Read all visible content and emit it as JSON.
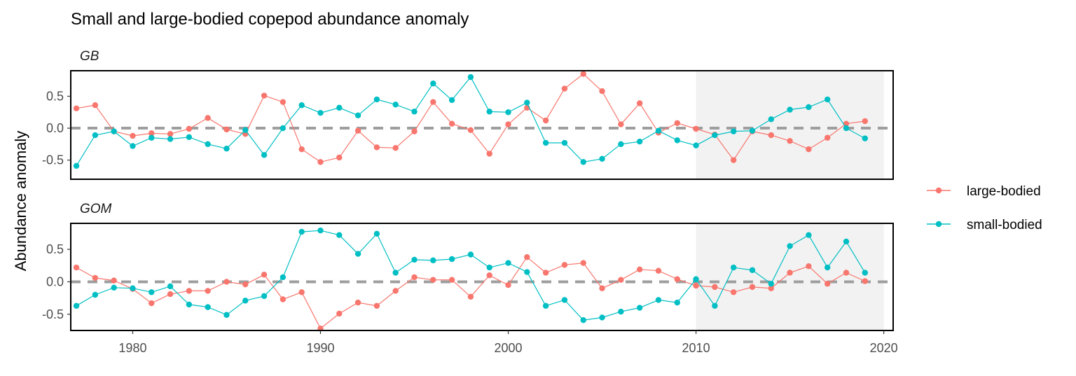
{
  "chart_data": {
    "type": "line",
    "title": "Small and large-bodied copepod abundance anomaly",
    "xlabel": "",
    "ylabel": "Abundance anomaly",
    "xlim": [
      1976.7,
      2020.5
    ],
    "x_ticks": [
      1980,
      1990,
      2000,
      2010,
      2020
    ],
    "y_ticks": [
      -0.5,
      0.0,
      0.5
    ],
    "y_tick_labels": [
      "-0.5",
      "0.0",
      "0.5"
    ],
    "highlight_region": [
      2010,
      2020
    ],
    "reference_line": 0,
    "legend_position": "right",
    "series_colors": {
      "large-bodied": "#F8766D",
      "small-bodied": "#00BFC4"
    },
    "x": [
      1977,
      1978,
      1979,
      1980,
      1981,
      1982,
      1983,
      1984,
      1985,
      1986,
      1987,
      1988,
      1989,
      1990,
      1991,
      1992,
      1993,
      1994,
      1995,
      1996,
      1997,
      1998,
      1999,
      2000,
      2001,
      2002,
      2003,
      2004,
      2005,
      2006,
      2007,
      2008,
      2009,
      2010,
      2011,
      2012,
      2013,
      2014,
      2015,
      2016,
      2017,
      2018,
      2019
    ],
    "panels": [
      {
        "label": "GB",
        "ylim": [
          -0.8,
          0.9
        ],
        "series": [
          {
            "name": "large-bodied",
            "values": [
              0.31,
              0.36,
              -0.05,
              -0.12,
              -0.08,
              -0.09,
              -0.01,
              0.16,
              -0.02,
              -0.09,
              0.51,
              0.41,
              -0.33,
              -0.53,
              -0.46,
              -0.04,
              -0.3,
              -0.31,
              -0.05,
              0.41,
              0.07,
              -0.03,
              -0.4,
              0.06,
              0.32,
              0.12,
              0.62,
              0.85,
              0.58,
              0.06,
              0.39,
              -0.07,
              0.08,
              -0.01,
              -0.1,
              -0.5,
              -0.05,
              -0.11,
              -0.2,
              -0.33,
              -0.15,
              0.07,
              0.11
            ]
          },
          {
            "name": "small-bodied",
            "values": [
              -0.59,
              -0.11,
              -0.05,
              -0.28,
              -0.15,
              -0.17,
              -0.14,
              -0.25,
              -0.32,
              -0.03,
              -0.42,
              0.0,
              0.36,
              0.24,
              0.32,
              0.2,
              0.45,
              0.37,
              0.26,
              0.7,
              0.44,
              0.8,
              0.26,
              0.25,
              0.4,
              -0.23,
              -0.23,
              -0.53,
              -0.48,
              -0.25,
              -0.21,
              -0.04,
              -0.19,
              -0.27,
              -0.11,
              -0.05,
              -0.04,
              0.14,
              0.29,
              0.33,
              0.45,
              0.0,
              -0.16
            ]
          }
        ]
      },
      {
        "label": "GOM",
        "ylim": [
          -0.75,
          0.9
        ],
        "series": [
          {
            "name": "large-bodied",
            "values": [
              0.22,
              0.06,
              0.02,
              -0.11,
              -0.33,
              -0.19,
              -0.14,
              -0.14,
              0.0,
              -0.04,
              0.11,
              -0.27,
              -0.16,
              -0.72,
              -0.49,
              -0.32,
              -0.37,
              -0.14,
              0.07,
              0.03,
              0.03,
              -0.23,
              0.1,
              -0.05,
              0.38,
              0.14,
              0.26,
              0.29,
              -0.1,
              0.03,
              0.19,
              0.17,
              0.04,
              -0.06,
              -0.08,
              -0.16,
              -0.08,
              -0.1,
              0.14,
              0.24,
              -0.03,
              0.14,
              0.01
            ]
          },
          {
            "name": "small-bodied",
            "values": [
              -0.37,
              -0.2,
              -0.09,
              -0.1,
              -0.16,
              -0.07,
              -0.35,
              -0.39,
              -0.51,
              -0.29,
              -0.22,
              0.07,
              0.77,
              0.79,
              0.72,
              0.43,
              0.74,
              0.14,
              0.34,
              0.33,
              0.35,
              0.42,
              0.22,
              0.29,
              0.15,
              -0.37,
              -0.28,
              -0.59,
              -0.55,
              -0.46,
              -0.4,
              -0.28,
              -0.32,
              0.04,
              -0.37,
              0.22,
              0.18,
              -0.03,
              0.55,
              0.72,
              0.22,
              0.62,
              0.14
            ]
          }
        ]
      }
    ]
  }
}
